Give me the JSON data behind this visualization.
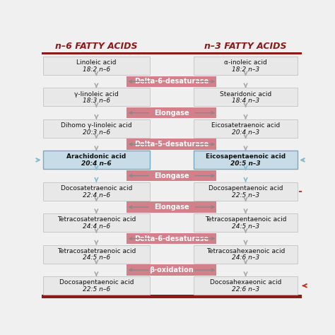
{
  "title_left": "n–6 FATTY ACIDS",
  "title_right": "n–3 FATTY ACIDS",
  "title_color": "#8B1A1A",
  "fig_bg": "#f0f0f0",
  "box_bg": "#e8e8e8",
  "blue_box_bg": "#c8dce8",
  "enzyme_bg": "#d4808a",
  "enzyme_text_color": "#ffffff",
  "arrow_gray": "#aaaaaa",
  "arrow_blue": "#88bbcc",
  "red_bracket": "#c0392b",
  "border_color": "#bbbbbb",
  "left_boxes": [
    {
      "line1": "Linoleic acid",
      "line2": "18:2 n–6",
      "blue": false
    },
    {
      "line1": "γ-linoleic acid",
      "line2": "18:3 n–6",
      "blue": false
    },
    {
      "line1": "Dihomo γ-linoleic acid",
      "line2": "20:3 n–6",
      "blue": false
    },
    {
      "line1": "Arachidonic acid",
      "line2": "20:4 n–6",
      "blue": true
    },
    {
      "line1": "Docosatetraenoic acid",
      "line2": "22:4 n–6",
      "blue": false
    },
    {
      "line1": "Tetracosatetraenoic acid",
      "line2": "24:4 n–6",
      "blue": false
    },
    {
      "line1": "Tetracosatetraenoic acid",
      "line2": "24:5 n–6",
      "blue": false
    },
    {
      "line1": "Docosapentaenoic acid",
      "line2": "22:5 n–6",
      "blue": false
    }
  ],
  "right_boxes": [
    {
      "line1": "α-inoleic acid",
      "line2": "18:2 n–3",
      "blue": false
    },
    {
      "line1": "Stearidonic acid",
      "line2": "18:4 n–3",
      "blue": false
    },
    {
      "line1": "Eicosatetraenoic acid",
      "line2": "20:4 n–3",
      "blue": false
    },
    {
      "line1": "Eicosapentaenoic acid",
      "line2": "20:5 n–3",
      "blue": true
    },
    {
      "line1": "Docosapentaenoic acid",
      "line2": "22:5 n–3",
      "blue": false
    },
    {
      "line1": "Tetracosapentaenoic acid",
      "line2": "24:5 n–3",
      "blue": false
    },
    {
      "line1": "Tetracosahexaenoic acid",
      "line2": "24:6 n–3",
      "blue": false
    },
    {
      "line1": "Docosahexaeonic acid",
      "line2": "22:6 n–3",
      "blue": false
    }
  ],
  "enzymes": [
    "Delta-6-desaturase",
    "Elongase",
    "Delta-5-desaturase",
    "Elongase",
    "Elongase",
    "Delta-6-desaturase",
    "β-oxidation"
  ]
}
